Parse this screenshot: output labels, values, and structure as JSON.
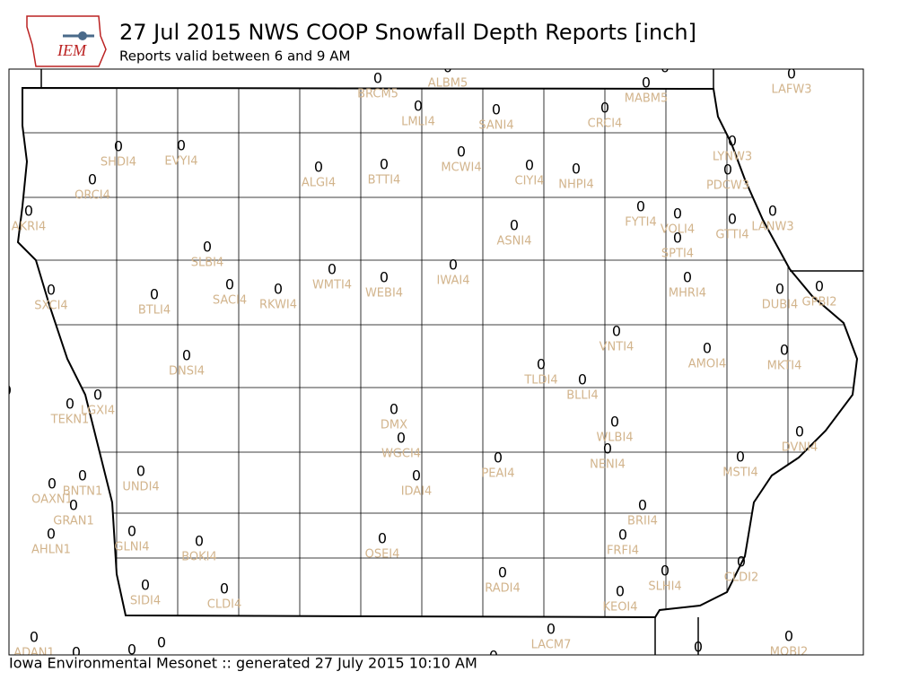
{
  "header": {
    "logo": "IEM",
    "title": "27 Jul 2015 NWS COOP Snowfall Depth Reports [inch]",
    "subtitle": "Reports valid between 6 and 9 AM"
  },
  "footer": "Iowa Environmental Mesonet :: generated 27 July 2015 10:10 AM",
  "stations": [
    {
      "id": "BRCM5",
      "value": 0
    },
    {
      "id": "ALBM5",
      "value": 0
    },
    {
      "id": "MABM5",
      "value": 0
    },
    {
      "id": "LAFW3",
      "value": 0
    },
    {
      "id": "LMLI4",
      "value": 0
    },
    {
      "id": "SANI4",
      "value": 0
    },
    {
      "id": "CRCI4",
      "value": 0
    },
    {
      "id": "SHDI4",
      "value": 0
    },
    {
      "id": "EVYI4",
      "value": 0
    },
    {
      "id": "LYNW3",
      "value": 0
    },
    {
      "id": "MCWI4",
      "value": 0
    },
    {
      "id": "ALGI4",
      "value": 0
    },
    {
      "id": "BTTI4",
      "value": 0
    },
    {
      "id": "CIYI4",
      "value": 0
    },
    {
      "id": "NHPI4",
      "value": 0
    },
    {
      "id": "PDCW3",
      "value": 0
    },
    {
      "id": "ORCI4",
      "value": 0
    },
    {
      "id": "FYTI4",
      "value": 0
    },
    {
      "id": "VOLI4",
      "value": 0
    },
    {
      "id": "GTTI4",
      "value": 0
    },
    {
      "id": "LANW3",
      "value": 0
    },
    {
      "id": "AKRI4",
      "value": 0
    },
    {
      "id": "ASNI4",
      "value": 0
    },
    {
      "id": "SPTI4",
      "value": 0
    },
    {
      "id": "SLBI4",
      "value": 0
    },
    {
      "id": "IWAI4",
      "value": 0
    },
    {
      "id": "WMTI4",
      "value": 0
    },
    {
      "id": "MHRI4",
      "value": 0
    },
    {
      "id": "WEBI4",
      "value": 0
    },
    {
      "id": "SACI4",
      "value": 0
    },
    {
      "id": "RKWI4",
      "value": 0
    },
    {
      "id": "DUBI4",
      "value": 0
    },
    {
      "id": "GPBI2",
      "value": 0
    },
    {
      "id": "SXCI4",
      "value": 0
    },
    {
      "id": "BTLI4",
      "value": 0
    },
    {
      "id": "VNTI4",
      "value": 0
    },
    {
      "id": "AMOI4",
      "value": 0
    },
    {
      "id": "MKTI4",
      "value": 0
    },
    {
      "id": "DNSI4",
      "value": 0
    },
    {
      "id": "TLDI4",
      "value": 0
    },
    {
      "id": "BLLI4",
      "value": 0
    },
    {
      "id": "LGXI4",
      "value": 0
    },
    {
      "id": "TEKN1",
      "value": 0
    },
    {
      "id": "DMX",
      "value": 0
    },
    {
      "id": "WLBI4",
      "value": 0
    },
    {
      "id": "DVNI4",
      "value": 0
    },
    {
      "id": "WGCI4",
      "value": 0
    },
    {
      "id": "NENI4",
      "value": 0
    },
    {
      "id": "PEAI4",
      "value": 0
    },
    {
      "id": "MSTI4",
      "value": 0
    },
    {
      "id": "UNDI4",
      "value": 0
    },
    {
      "id": "BNTN1",
      "value": 0
    },
    {
      "id": "IDAI4",
      "value": 0
    },
    {
      "id": "OAXN1",
      "value": 0
    },
    {
      "id": "GRAN1",
      "value": 0
    },
    {
      "id": "BRII4",
      "value": 0
    },
    {
      "id": "AHLN1",
      "value": 0
    },
    {
      "id": "GLNI4",
      "value": 0
    },
    {
      "id": "FRFI4",
      "value": 0
    },
    {
      "id": "OSEI4",
      "value": 0
    },
    {
      "id": "BOKI4",
      "value": 0
    },
    {
      "id": "CLDI2",
      "value": 0
    },
    {
      "id": "SLHI4",
      "value": 0
    },
    {
      "id": "RADI4",
      "value": 0
    },
    {
      "id": "SIDI4",
      "value": 0
    },
    {
      "id": "CLDI4",
      "value": 0
    },
    {
      "id": "KEOI4",
      "value": 0
    },
    {
      "id": "LACM7",
      "value": 0
    },
    {
      "id": "ADAN1",
      "value": 0
    },
    {
      "id": "MOBI2",
      "value": 0
    }
  ],
  "unlabeled_values": [
    0,
    0,
    0,
    0,
    0,
    0,
    0
  ]
}
